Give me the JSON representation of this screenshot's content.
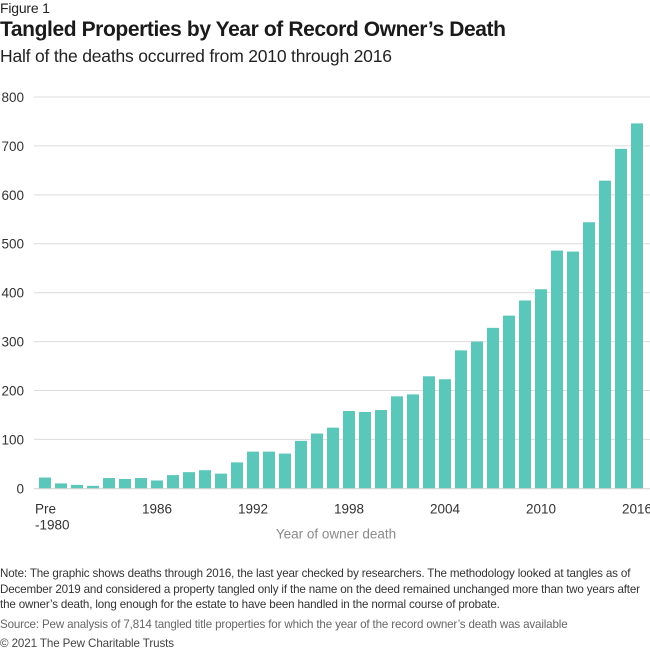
{
  "figure_label": "Figure 1",
  "chart_data": {
    "type": "bar",
    "title": "Tangled Properties by Year of Record Owner’s Death",
    "subtitle": "Half of the deaths occurred from 2010 through 2016",
    "xlabel": "Year of owner death",
    "ylabel": "",
    "ylim": [
      0,
      800
    ],
    "yticks": [
      0,
      100,
      200,
      300,
      400,
      500,
      600,
      700,
      800
    ],
    "grid": true,
    "legend": "none",
    "bar_color": "#5BC6BA",
    "categories": [
      "Pre-1980",
      "1980",
      "1981",
      "1982",
      "1983",
      "1984",
      "1985",
      "1986",
      "1987",
      "1988",
      "1989",
      "1990",
      "1991",
      "1992",
      "1993",
      "1994",
      "1995",
      "1996",
      "1997",
      "1998",
      "1999",
      "2000",
      "2001",
      "2002",
      "2003",
      "2004",
      "2005",
      "2006",
      "2007",
      "2008",
      "2009",
      "2010",
      "2011",
      "2012",
      "2013",
      "2014",
      "2015",
      "2016"
    ],
    "values": [
      22,
      10,
      7,
      5,
      21,
      19,
      21,
      16,
      27,
      33,
      37,
      30,
      53,
      75,
      75,
      71,
      97,
      112,
      124,
      158,
      156,
      160,
      188,
      192,
      229,
      223,
      282,
      300,
      328,
      353,
      384,
      407,
      486,
      484,
      544,
      629,
      694,
      746
    ],
    "xtick_labels": [
      {
        "category": "Pre-1980",
        "lines": [
          "Pre",
          "-1980"
        ]
      },
      {
        "category": "1986",
        "lines": [
          "1986"
        ]
      },
      {
        "category": "1992",
        "lines": [
          "1992"
        ]
      },
      {
        "category": "1998",
        "lines": [
          "1998"
        ]
      },
      {
        "category": "2004",
        "lines": [
          "2004"
        ]
      },
      {
        "category": "2010",
        "lines": [
          "2010"
        ]
      },
      {
        "category": "2016",
        "lines": [
          "2016"
        ]
      }
    ]
  },
  "footer": {
    "note": "Note: The graphic shows deaths through 2016, the last year checked by researchers. The methodology looked at tangles as of December 2019 and considered a property tangled only if the name on the deed remained unchanged more than two years after the owner’s death, long enough for the estate to have been handled in the normal course of probate.",
    "source": "Source: Pew analysis of 7,814 tangled title properties for which the year of the record owner’s death was available",
    "copyright": "© 2021 The Pew Charitable Trusts"
  }
}
